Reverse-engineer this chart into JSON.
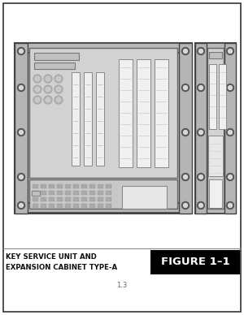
{
  "bg_color": "#ffffff",
  "border_color": "#333333",
  "cabinet_bg": "#d8d8d8",
  "rail_color": "#c0c0c0",
  "panel_bg": "#d0d0d0",
  "panel_inner_bg": "#cecece",
  "slot_white": "#f0f0f0",
  "slot_light": "#e8e8e8",
  "dark_line": "#555555",
  "medium_line": "#888888",
  "light_line": "#aaaaaa",
  "caption_left": "KEY SERVICE UNIT AND\nEXPANSION CABINET TYPE-A",
  "figure_label": "FIGURE 1–1",
  "page_num": "1.3",
  "title_bg": "#000000",
  "title_fg": "#ffffff",
  "page_bg": "#f5f5f5"
}
